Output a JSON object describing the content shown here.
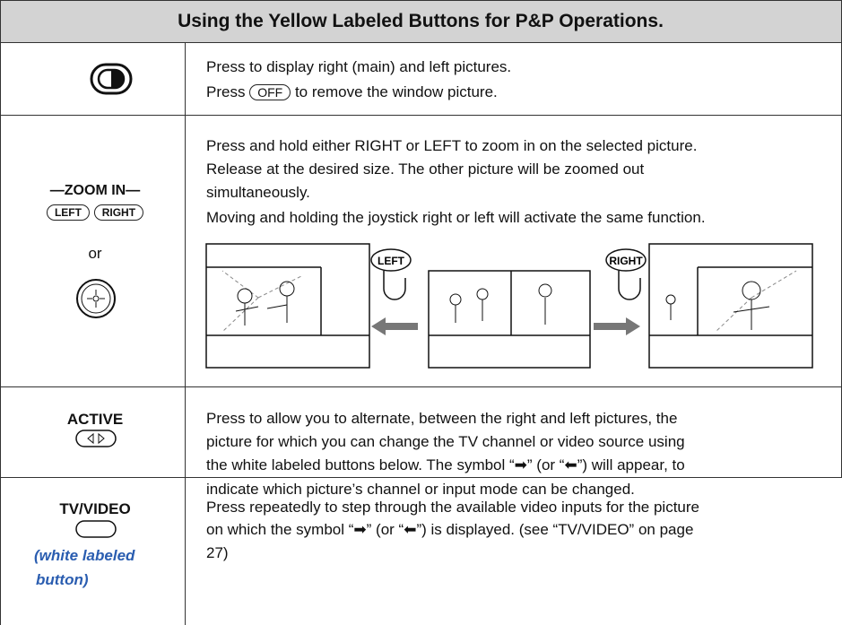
{
  "header": {
    "title": "Using the Yellow Labeled Buttons for P&P Operations."
  },
  "rows": [
    {
      "lines": [
        "Press to display right (main) and left pictures."
      ],
      "off_line": {
        "before": "Press",
        "button": "OFF",
        "after": "to remove the window picture."
      }
    },
    {
      "key_label": "ZOOM IN",
      "buttons": [
        "LEFT",
        "RIGHT"
      ],
      "or": "or",
      "lines": [
        "Press and hold either RIGHT or LEFT to zoom in on the selected picture.",
        "Release at the desired size. The other picture will be zoomed out",
        "simultaneously.",
        "Moving and holding the joystick right or left will activate the same function."
      ],
      "illustration": {
        "left_button": "LEFT",
        "right_button": "RIGHT"
      }
    },
    {
      "key_label": "ACTIVE",
      "lines": [
        "Press to allow you to alternate, between the right and left pictures, the",
        "picture for which you can change the TV channel or video source using",
        "the white labeled buttons below. The symbol “➡” (or “⬅”) will appear, to",
        "indicate which picture’s channel or input mode can be changed."
      ]
    },
    {
      "key_label": "TV/VIDEO",
      "note": [
        "(white labeled",
        "button)"
      ],
      "lines": [
        "Press repeatedly to step through the available video inputs for the picture",
        "on which the symbol “➡” (or “⬅”) is displayed. (see “TV/VIDEO” on page",
        "27)"
      ]
    }
  ]
}
